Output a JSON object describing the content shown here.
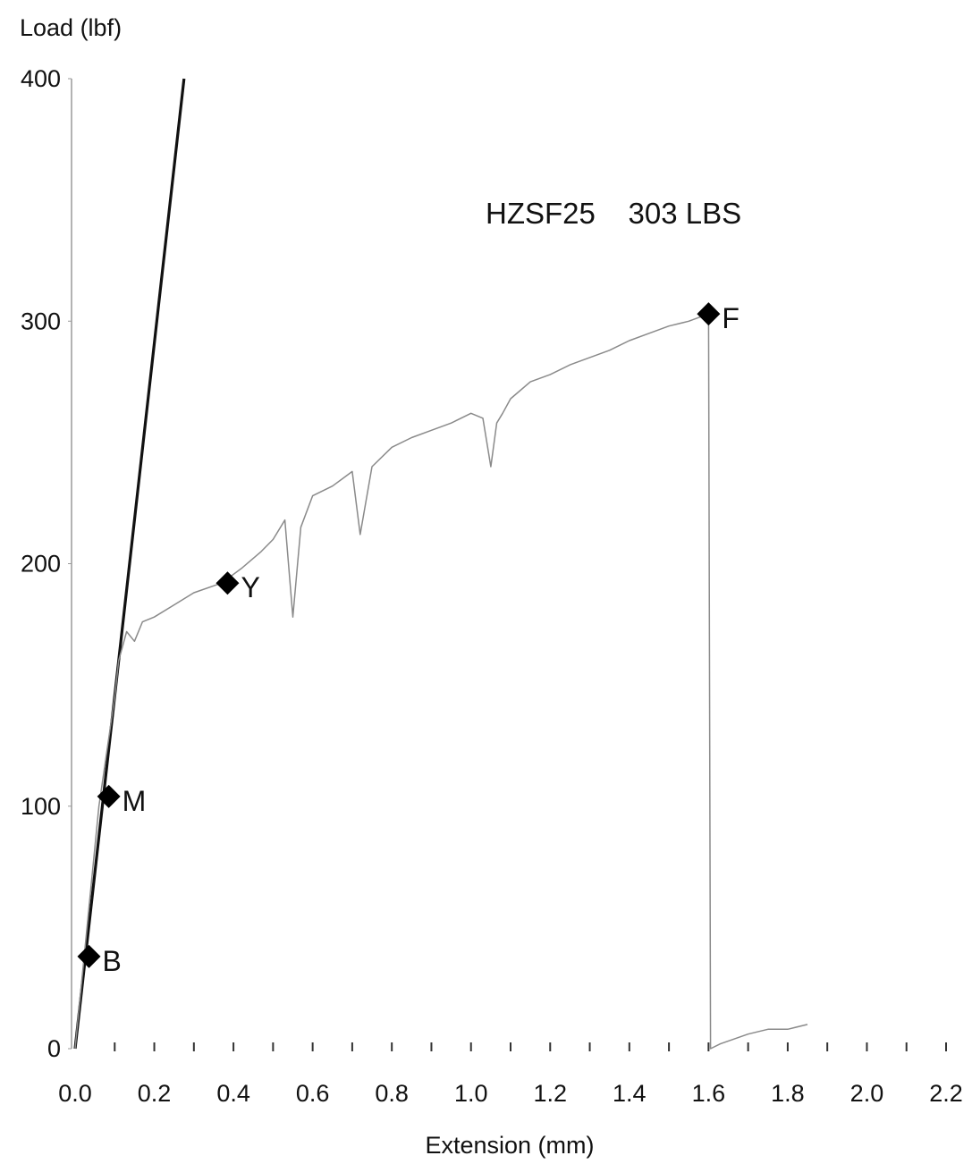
{
  "chart_data": {
    "type": "line",
    "ylabel": "Load (lbf)",
    "xlabel": "Extension (mm)",
    "annotation": "HZSF25    303 LBS",
    "xlim": [
      0.0,
      2.2
    ],
    "ylim": [
      0,
      400
    ],
    "xticks": [
      "0.0",
      "0.2",
      "0.4",
      "0.6",
      "0.8",
      "1.0",
      "1.2",
      "1.4",
      "1.6",
      "1.8",
      "2.0",
      "2.2"
    ],
    "yticks": [
      "0",
      "100",
      "200",
      "300",
      "400"
    ],
    "grid": false,
    "series": [
      {
        "style": "thick",
        "color": "#111111",
        "x": [
          0.0,
          0.275
        ],
        "y": [
          0,
          400
        ]
      },
      {
        "style": "thin",
        "color": "#8a8a8a",
        "x": [
          0.0,
          0.06,
          0.1,
          0.11,
          0.13,
          0.15,
          0.17,
          0.2,
          0.25,
          0.3,
          0.37,
          0.42,
          0.47,
          0.5,
          0.53,
          0.55,
          0.57,
          0.6,
          0.65,
          0.7,
          0.72,
          0.75,
          0.8,
          0.85,
          0.9,
          0.95,
          1.0,
          1.03,
          1.05,
          1.065,
          1.08,
          1.1,
          1.15,
          1.2,
          1.25,
          1.3,
          1.35,
          1.4,
          1.45,
          1.5,
          1.55,
          1.6,
          1.6,
          1.605,
          1.63,
          1.7,
          1.75,
          1.8,
          1.85
        ],
        "y": [
          0,
          100,
          145,
          160,
          172,
          168,
          176,
          178,
          183,
          188,
          192,
          198,
          205,
          210,
          218,
          178,
          215,
          228,
          232,
          238,
          212,
          240,
          248,
          252,
          255,
          258,
          262,
          260,
          240,
          258,
          262,
          268,
          275,
          278,
          282,
          285,
          288,
          292,
          295,
          298,
          300,
          303,
          303,
          0,
          2,
          6,
          8,
          8,
          10
        ]
      }
    ],
    "markers": [
      {
        "label": "B",
        "x": 0.035,
        "y": 38
      },
      {
        "label": "M",
        "x": 0.085,
        "y": 104
      },
      {
        "label": "Y",
        "x": 0.385,
        "y": 192
      },
      {
        "label": "F",
        "x": 1.6,
        "y": 303
      }
    ]
  }
}
